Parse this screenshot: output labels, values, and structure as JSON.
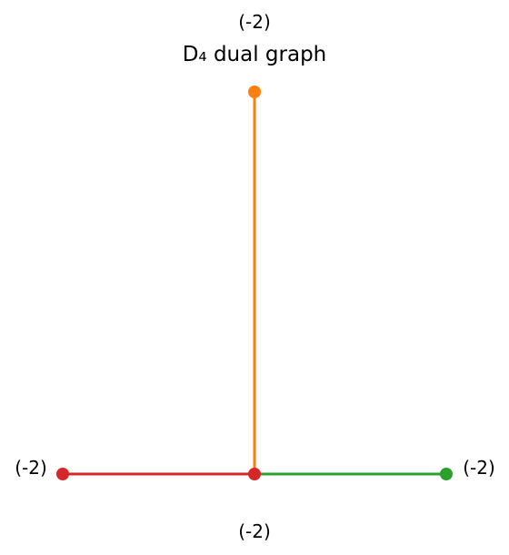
{
  "title": "D₄ dual graph",
  "nodes": [
    {
      "id": "top",
      "label": "(-2)",
      "color": "#ff7f0e"
    },
    {
      "id": "center",
      "label": "(-2)",
      "color": "#d62728"
    },
    {
      "id": "left",
      "label": "(-2)",
      "color": "#d62728"
    },
    {
      "id": "right",
      "label": "(-2)",
      "color": "#2ca02c"
    }
  ],
  "edges": [
    {
      "from": "center",
      "to": "top",
      "color": "#ff7f0e"
    },
    {
      "from": "center",
      "to": "left",
      "color": "#d62728"
    },
    {
      "from": "center",
      "to": "right",
      "color": "#2ca02c"
    }
  ]
}
